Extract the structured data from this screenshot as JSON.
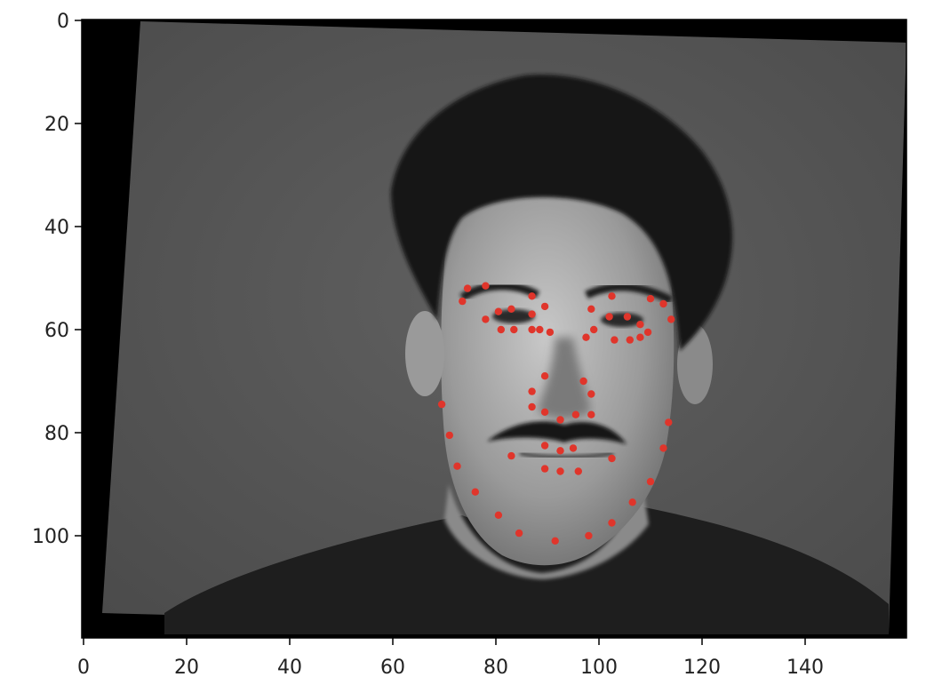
{
  "image": {
    "content": "grayscale face photograph with facial landmark points",
    "extent": {
      "x": [
        0,
        160
      ],
      "y": [
        120,
        0
      ]
    }
  },
  "axes": {
    "x_ticks": [
      0,
      20,
      40,
      60,
      80,
      100,
      120,
      140
    ],
    "y_ticks": [
      0,
      20,
      40,
      60,
      80,
      100
    ]
  },
  "landmark_color": "#e0352b",
  "landmarks": [
    [
      73.5,
      54.5
    ],
    [
      74.5,
      52
    ],
    [
      78,
      51.5
    ],
    [
      87,
      53.5
    ],
    [
      89.5,
      55.5
    ],
    [
      78,
      58
    ],
    [
      80.5,
      56.5
    ],
    [
      83,
      56
    ],
    [
      87,
      57
    ],
    [
      81,
      60
    ],
    [
      83.5,
      60
    ],
    [
      87,
      60
    ],
    [
      88.5,
      60
    ],
    [
      90.5,
      60.5
    ],
    [
      102.5,
      53.5
    ],
    [
      110,
      54
    ],
    [
      112.5,
      55
    ],
    [
      114,
      58
    ],
    [
      98.5,
      56
    ],
    [
      102,
      57.5
    ],
    [
      105.5,
      57.5
    ],
    [
      108,
      59
    ],
    [
      99,
      60
    ],
    [
      103,
      62
    ],
    [
      106,
      62
    ],
    [
      108,
      61.5
    ],
    [
      109.5,
      60.5
    ],
    [
      97.5,
      61.5
    ],
    [
      89.5,
      69
    ],
    [
      87,
      72
    ],
    [
      97,
      70
    ],
    [
      98.5,
      72.5
    ],
    [
      87,
      75
    ],
    [
      89.5,
      76
    ],
    [
      92.5,
      77.5
    ],
    [
      95.5,
      76.5
    ],
    [
      98.5,
      76.5
    ],
    [
      69.5,
      74.5
    ],
    [
      71,
      80.5
    ],
    [
      72.5,
      86.5
    ],
    [
      76,
      91.5
    ],
    [
      80.5,
      96
    ],
    [
      84.5,
      99.5
    ],
    [
      91.5,
      101
    ],
    [
      98,
      100
    ],
    [
      102.5,
      97.5
    ],
    [
      106.5,
      93.5
    ],
    [
      110,
      89.5
    ],
    [
      112.5,
      83
    ],
    [
      113.5,
      78
    ],
    [
      83,
      84.5
    ],
    [
      89.5,
      82.5
    ],
    [
      92.5,
      83.5
    ],
    [
      95,
      83
    ],
    [
      102.5,
      85
    ],
    [
      89.5,
      87
    ],
    [
      92.5,
      87.5
    ],
    [
      96,
      87.5
    ]
  ]
}
